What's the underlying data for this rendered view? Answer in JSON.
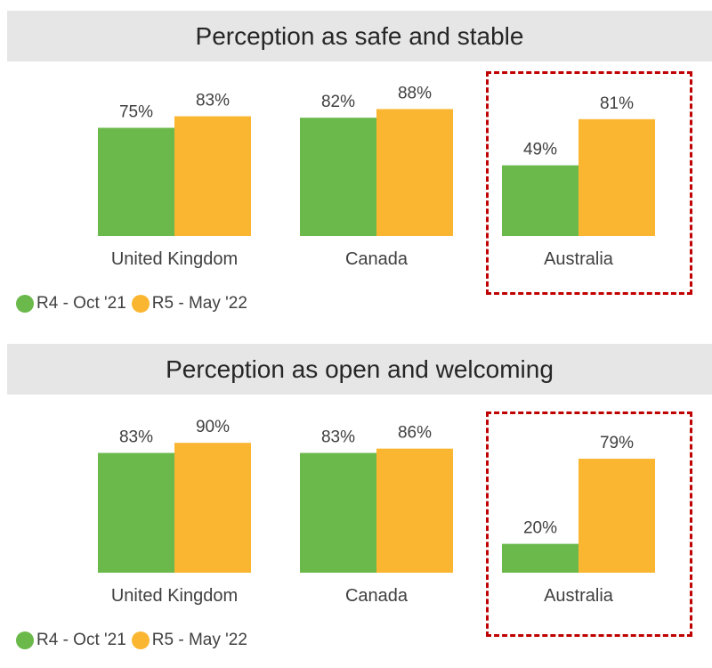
{
  "chart_data": [
    {
      "type": "bar",
      "title": "Perception as safe and stable",
      "categories": [
        "United Kingdom",
        "Canada",
        "Australia"
      ],
      "series": [
        {
          "name": "R4 - Oct '21",
          "values": [
            75,
            82,
            49
          ],
          "labels": [
            "75%",
            "82%",
            "49%"
          ],
          "color": "#6ab94a"
        },
        {
          "name": "R5 - May '22",
          "values": [
            83,
            88,
            81
          ],
          "labels": [
            "83%",
            "88%",
            "81%"
          ],
          "color": "#fbb631"
        }
      ],
      "ylim": [
        0,
        100
      ],
      "legend": "bottom-left",
      "highlight_category": "Australia",
      "highlight_color": "#c00000"
    },
    {
      "type": "bar",
      "title": "Perception as open and welcoming",
      "categories": [
        "United Kingdom",
        "Canada",
        "Australia"
      ],
      "series": [
        {
          "name": "R4 - Oct '21",
          "values": [
            83,
            83,
            20
          ],
          "labels": [
            "83%",
            "83%",
            "20%"
          ],
          "color": "#6ab94a"
        },
        {
          "name": "R5 - May '22",
          "values": [
            90,
            86,
            79
          ],
          "labels": [
            "90%",
            "86%",
            "79%"
          ],
          "color": "#fbb631"
        }
      ],
      "ylim": [
        0,
        100
      ],
      "legend": "bottom-left",
      "highlight_category": "Australia",
      "highlight_color": "#c00000"
    }
  ]
}
